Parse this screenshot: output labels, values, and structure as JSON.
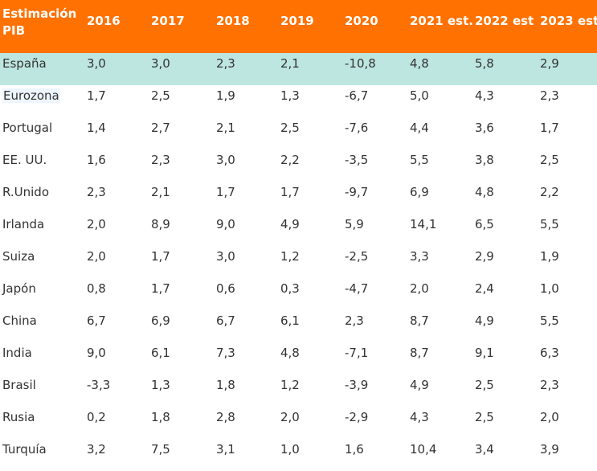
{
  "table": {
    "header_label": "Estimación PIB",
    "columns": [
      "2016",
      "2017",
      "2018",
      "2019",
      "2020",
      "2021 est.",
      "2022 est",
      "2023 est"
    ],
    "highlight_color": "#bde6e0",
    "header_color": "#ff7100",
    "rows": [
      {
        "country": "España",
        "values": [
          "3,0",
          "3,0",
          "2,3",
          "2,1",
          "-10,8",
          "4,8",
          "5,8",
          "2,9"
        ]
      },
      {
        "country": "Eurozona",
        "values": [
          "1,7",
          "2,5",
          "1,9",
          "1,3",
          "-6,7",
          "5,0",
          "4,3",
          "2,3"
        ]
      },
      {
        "country": "Portugal",
        "values": [
          "1,4",
          "2,7",
          "2,1",
          "2,5",
          "-7,6",
          "4,4",
          "3,6",
          "1,7"
        ]
      },
      {
        "country": "EE. UU.",
        "values": [
          "1,6",
          "2,3",
          "3,0",
          "2,2",
          "-3,5",
          "5,5",
          "3,8",
          "2,5"
        ]
      },
      {
        "country": "R.Unido",
        "values": [
          "2,3",
          "2,1",
          "1,7",
          "1,7",
          "-9,7",
          "6,9",
          "4,8",
          "2,2"
        ]
      },
      {
        "country": "Irlanda",
        "values": [
          "2,0",
          "8,9",
          "9,0",
          "4,9",
          "5,9",
          "14,1",
          "6,5",
          "5,5"
        ]
      },
      {
        "country": "Suiza",
        "values": [
          "2,0",
          "1,7",
          "3,0",
          "1,2",
          "-2,5",
          "3,3",
          "2,9",
          "1,9"
        ]
      },
      {
        "country": "Japón",
        "values": [
          "0,8",
          "1,7",
          "0,6",
          "0,3",
          "-4,7",
          "2,0",
          "2,4",
          "1,0"
        ]
      },
      {
        "country": "China",
        "values": [
          "6,7",
          "6,9",
          "6,7",
          "6,1",
          "2,3",
          "8,7",
          "4,9",
          "5,5"
        ]
      },
      {
        "country": "India",
        "values": [
          "9,0",
          "6,1",
          "7,3",
          "4,8",
          "-7,1",
          "8,7",
          "9,1",
          "6,3"
        ]
      },
      {
        "country": "Brasil",
        "values": [
          "-3,3",
          "1,3",
          "1,8",
          "1,2",
          "-3,9",
          "4,9",
          "2,5",
          "2,3"
        ]
      },
      {
        "country": "Rusia",
        "values": [
          "0,2",
          "1,8",
          "2,8",
          "2,0",
          "-2,9",
          "4,3",
          "2,5",
          "2,0"
        ]
      },
      {
        "country": "Turquía",
        "values": [
          "3,2",
          "7,5",
          "3,1",
          "1,0",
          "1,6",
          "10,4",
          "3,4",
          "3,9"
        ]
      }
    ]
  }
}
